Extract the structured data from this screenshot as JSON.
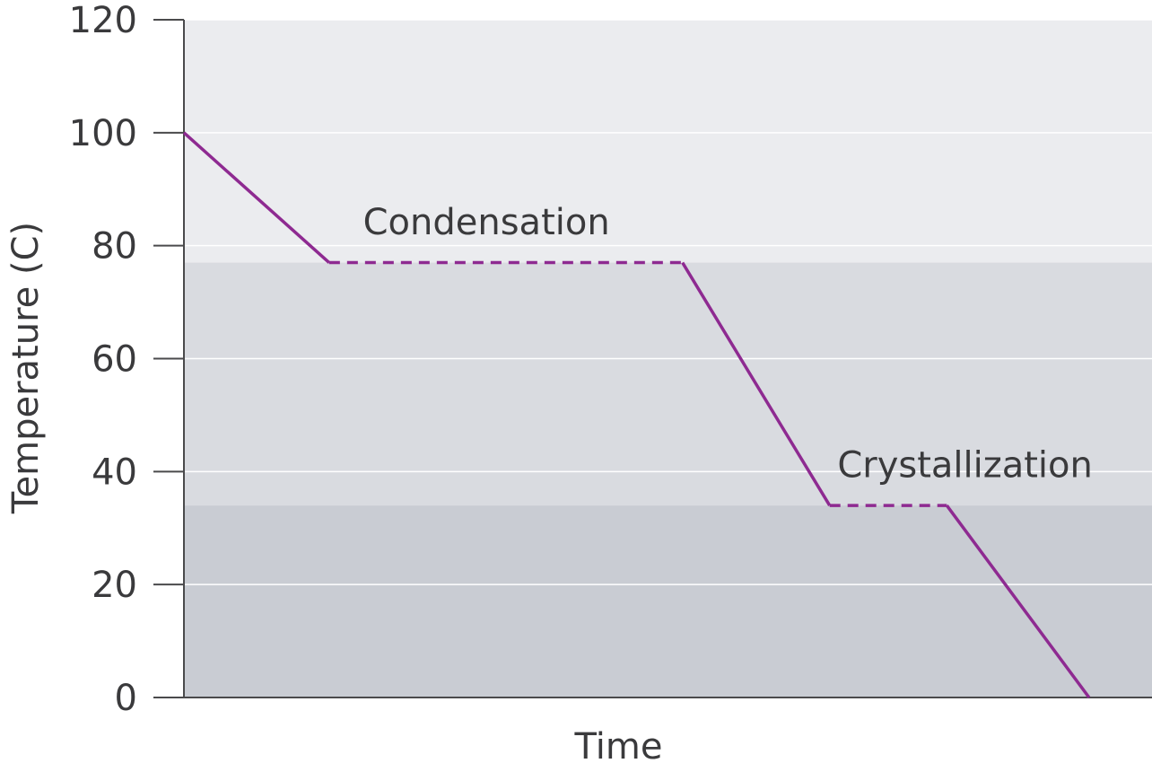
{
  "chart_data": {
    "type": "line",
    "xlabel": "Time",
    "ylabel": "Temperature (C)",
    "ylim": [
      0,
      120
    ],
    "yticks": [
      0,
      20,
      40,
      60,
      80,
      100,
      120
    ],
    "grid": "horizontal",
    "xticks": [],
    "series": [
      {
        "color": "#8e2a91",
        "points": [
          {
            "t": 0.0,
            "y": 100,
            "style": "solid"
          },
          {
            "t": 0.15,
            "y": 77,
            "style": "dashed"
          },
          {
            "t": 0.515,
            "y": 77,
            "style": "solid"
          },
          {
            "t": 0.667,
            "y": 34,
            "style": "dashed"
          },
          {
            "t": 0.788,
            "y": 34,
            "style": "solid"
          },
          {
            "t": 0.935,
            "y": 0,
            "style": "solid"
          }
        ]
      }
    ],
    "regions": [
      {
        "from": 77,
        "to": 120,
        "color": "#ebecef"
      },
      {
        "from": 34,
        "to": 77,
        "color": "#d9dbe0"
      },
      {
        "from": 0,
        "to": 34,
        "color": "#c9ccd3"
      }
    ],
    "annotations": [
      {
        "text": "Condensation",
        "t": 0.185,
        "y": 82
      },
      {
        "text": "Crystallization",
        "t": 0.675,
        "y": 39
      }
    ]
  },
  "colors": {
    "axis": "#4a4a4c",
    "gridline": "#ffffff",
    "text": "#3a3a3c"
  }
}
